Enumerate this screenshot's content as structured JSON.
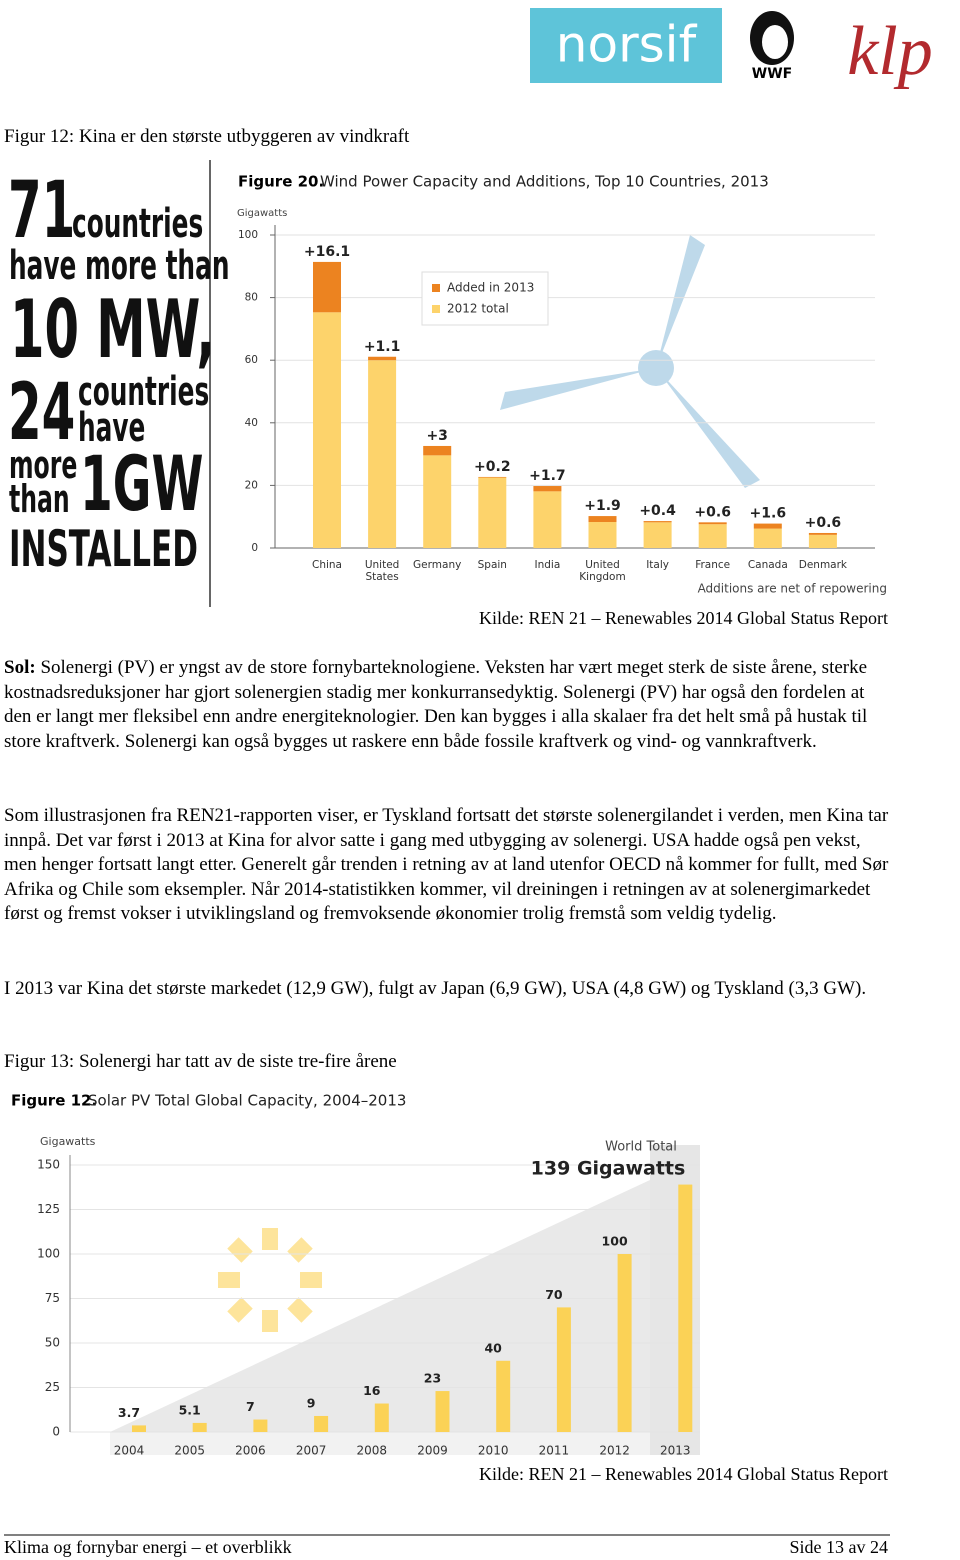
{
  "header": {
    "logos": [
      "norsif",
      "WWF",
      "klp"
    ]
  },
  "figure12": {
    "caption": "Figur 12: Kina er den største utbyggeren av vindkraft",
    "infographic": [
      "71",
      "countries",
      "have more than",
      "10 MW,",
      "24",
      "countries",
      "have",
      "more",
      "than",
      "1GW",
      "INSTALLED"
    ],
    "chart": {
      "type": "bar",
      "stacked": true,
      "figure_label": "Figure 20.",
      "title": "Wind Power Capacity and Additions, Top 10 Countries, 2013",
      "y_label": "Gigawatts",
      "note": "Additions are net of repowering",
      "categories": [
        "China",
        "United States",
        "Germany",
        "Spain",
        "India",
        "United Kingdom",
        "Italy",
        "France",
        "Canada",
        "Denmark"
      ],
      "series": [
        {
          "name": "2012 total",
          "color": "#fdd36b",
          "values": [
            75.3,
            60.0,
            29.6,
            22.5,
            18.1,
            8.3,
            8.2,
            7.6,
            6.2,
            4.2
          ]
        },
        {
          "name": "Added in 2013",
          "color": "#ec8320",
          "values": [
            16.1,
            1.1,
            3,
            0.2,
            1.7,
            1.9,
            0.4,
            0.6,
            1.6,
            0.6
          ],
          "value_labels": [
            "+16.1",
            "+1.1",
            "+3",
            "+0.2",
            "+1.7",
            "+1.9",
            "+0.4",
            "+0.6",
            "+1.6",
            "+0.6"
          ]
        }
      ],
      "ylim": [
        0,
        100
      ],
      "yticks": [
        0,
        20,
        40,
        60,
        80,
        100
      ],
      "grid": true
    },
    "source": "Kilde: REN 21 – Renewables 2014 Global Status Report"
  },
  "paragraphs": [
    {
      "lead": "Sol:",
      "text": "Solenergi (PV) er yngst av de store fornybarteknologiene. Veksten har vært meget sterk de siste årene, sterke kostnadsreduksjoner har gjort solenergien stadig mer konkurransedyktig. Solenergi (PV) har også den fordelen at den er langt mer fleksibel enn andre energiteknologier. Den kan bygges i alla skalaer fra det helt små på hustak til store kraftverk. Solenergi kan også bygges ut raskere enn både fossile kraftverk og vind- og vannkraftverk."
    },
    {
      "text": "Som illustrasjonen fra REN21-rapporten viser, er Tyskland fortsatt det største solenergilandet i verden, men Kina tar innpå. Det var først i 2013 at Kina for alvor satte i gang med utbygging av solenergi. USA hadde også pen vekst, men henger fortsatt langt etter. Generelt går trenden i retning av at land utenfor OECD nå kommer for fullt, med Sør Afrika og Chile som eksempler. Når 2014-statistikken kommer, vil dreiningen i retningen av at solenergimarkedet først og fremst vokser i utviklingsland og fremvoksende økonomier trolig fremstå som veldig tydelig."
    },
    {
      "text": "I 2013 var Kina det største markedet (12,9 GW), fulgt av Japan (6,9 GW), USA (4,8 GW) og Tyskland (3,3 GW)."
    }
  ],
  "figure13": {
    "caption": "Figur 13: Solenergi har tatt av de siste tre-fire årene",
    "chart": {
      "type": "bar",
      "figure_label": "Figure 12.",
      "title": "Solar PV Total Global Capacity, 2004–2013",
      "y_label": "Gigawatts",
      "annotation": "World Total",
      "categories": [
        "2004",
        "2005",
        "2006",
        "2007",
        "2008",
        "2009",
        "2010",
        "2011",
        "2012",
        "2013"
      ],
      "values": [
        3.7,
        5.1,
        7,
        9,
        16,
        23,
        40,
        70,
        100,
        139
      ],
      "value_labels": [
        "3.7",
        "5.1",
        "7",
        "9",
        "16",
        "23",
        "40",
        "70",
        "100",
        "139 Gigawatts"
      ],
      "color": "#fbd256",
      "ylim": [
        0,
        150
      ],
      "yticks": [
        0,
        25,
        50,
        75,
        100,
        125,
        150
      ],
      "grid": true
    },
    "source": "Kilde: REN 21 – Renewables 2014 Global Status Report"
  },
  "footer": {
    "left": "Klima og fornybar energi – et overblikk",
    "right": "Side 13 av 24"
  }
}
